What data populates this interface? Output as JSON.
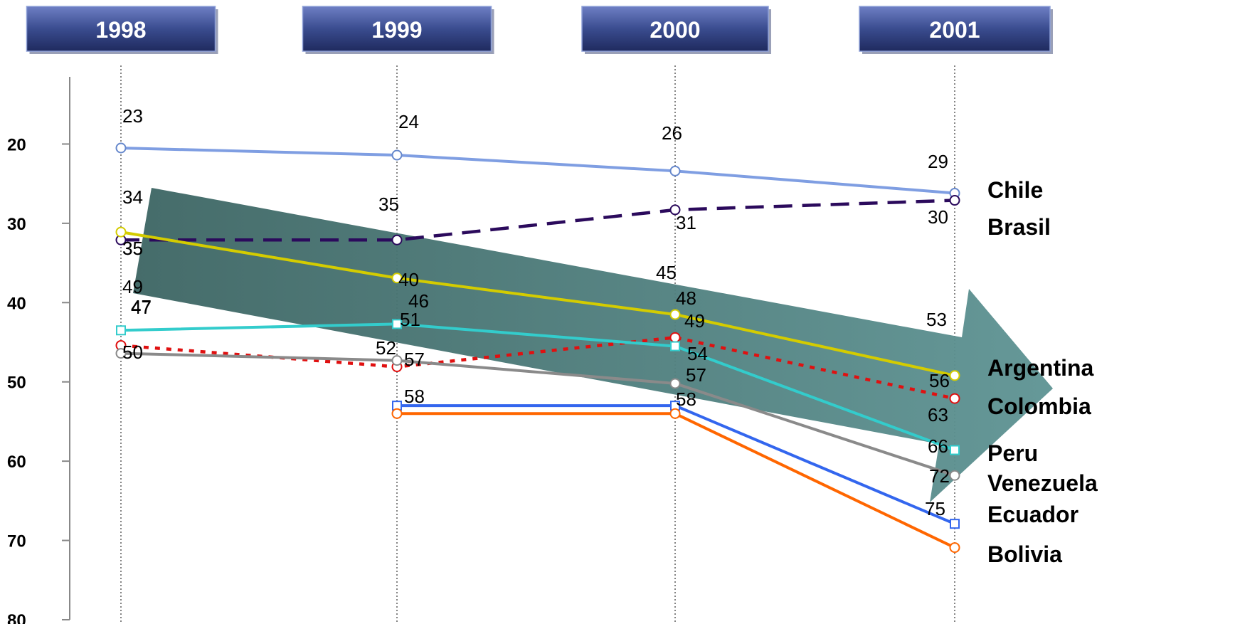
{
  "chart_data": {
    "type": "line",
    "x": [
      "1998",
      "1999",
      "2000",
      "2001"
    ],
    "y_axis": {
      "ticks": [
        20,
        30,
        40,
        50,
        60,
        70,
        80
      ],
      "range": [
        10,
        80
      ],
      "inverted": true
    },
    "grid": "vertical dotted lines at each year",
    "series": [
      {
        "name": "Chile",
        "color": "#7f9ee2",
        "dash": "solid",
        "marker": "circle",
        "values": [
          20.5,
          21.4,
          23.4,
          26.2
        ],
        "labels": [
          "23",
          "24",
          "26",
          "29"
        ]
      },
      {
        "name": "Brasil",
        "color": "#2b0a5c",
        "dash": "dashed",
        "marker": "circle",
        "values": [
          32.1,
          32.1,
          28.3,
          27.1
        ],
        "labels": [
          "35",
          "35",
          "31",
          "30"
        ]
      },
      {
        "name": "Argentina",
        "color": "#e01010",
        "dash": "dotted",
        "marker": "circle",
        "values": [
          45.4,
          48.1,
          44.4,
          52.1
        ],
        "labels": [
          "47",
          "52",
          "48",
          "56"
        ]
      },
      {
        "name": "Colombia",
        "color": "#33cccc",
        "dash": "solid",
        "marker": "square",
        "values": [
          43.5,
          42.7,
          45.5,
          58.6
        ],
        "labels": [
          "47",
          "46",
          "49",
          "63"
        ]
      },
      {
        "name": "Peru",
        "color": "#8a8a8a",
        "dash": "solid",
        "marker": "circle",
        "values": [
          46.4,
          47.3,
          50.2,
          61.8
        ],
        "labels": [
          "50",
          "51",
          "54",
          "66"
        ]
      },
      {
        "name": "Venezuela",
        "color": "#3366ee",
        "dash": "solid",
        "marker": "square",
        "values": [
          null,
          53.0,
          53.0,
          67.9
        ],
        "labels": [
          null,
          "57",
          "57",
          "72"
        ]
      },
      {
        "name": "Ecuador",
        "color": "#ff6600",
        "dash": "solid",
        "marker": "circle",
        "values": [
          null,
          54.0,
          54.0,
          70.9
        ],
        "labels": [
          null,
          "58",
          "58",
          "75"
        ]
      },
      {
        "name": "Bolivia",
        "color": "#d4cc00",
        "dash": "solid",
        "marker": "circle",
        "values": [
          31.1,
          36.9,
          41.5,
          49.2
        ],
        "labels": [
          "34",
          "40",
          "45",
          "53"
        ]
      }
    ],
    "category_labels": [
      "Chile",
      "Brasil",
      "Argentina",
      "Colombia",
      "Peru",
      "Venezuela",
      "Ecuador",
      "Bolivia"
    ],
    "extra_labels": [
      "35",
      "49"
    ],
    "annotation": "large teal arrow pointing down-right",
    "header_color": "#3a4c8f",
    "arrow_color": "#4a8080"
  }
}
